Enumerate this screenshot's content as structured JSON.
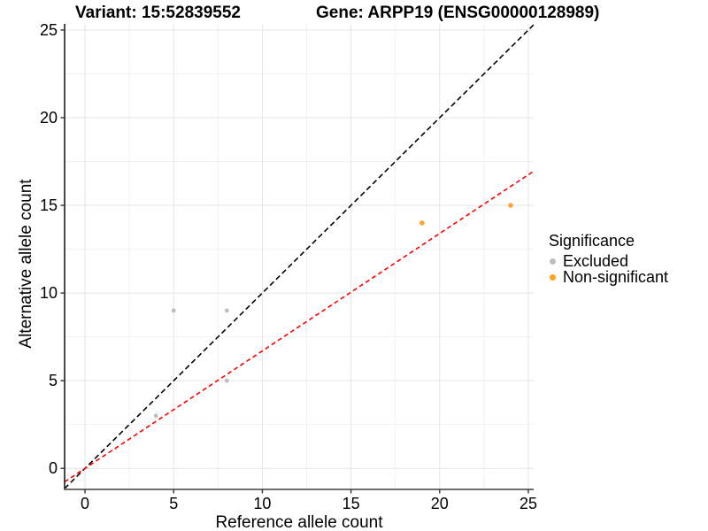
{
  "header": {
    "variant_title": "Variant: 15:52839552",
    "gene_title": "Gene: ARPP19 (ENSG00000128989)"
  },
  "chart_data": {
    "type": "scatter",
    "xlabel": "Reference allele count",
    "ylabel": "Alternative allele count",
    "xlim": [
      -1.15,
      25.3
    ],
    "ylim": [
      -1.2,
      25.35
    ],
    "x_ticks": [
      0,
      5,
      10,
      15,
      20,
      25
    ],
    "y_ticks": [
      0,
      5,
      10,
      15,
      20,
      25
    ],
    "x_minor_ticks": [
      2.5,
      7.5,
      12.5,
      17.5,
      22.5
    ],
    "y_minor_ticks": [
      2.5,
      7.5,
      12.5,
      17.5,
      22.5
    ],
    "grid": true,
    "series": [
      {
        "name": "Excluded",
        "color": "#BDBDBD",
        "point_radius": 2.4,
        "points": [
          [
            4,
            3
          ],
          [
            5,
            9
          ],
          [
            8,
            9
          ],
          [
            8,
            5
          ]
        ]
      },
      {
        "name": "Non-significant",
        "color": "#FCA33C",
        "point_radius": 2.8,
        "points": [
          [
            19,
            14
          ],
          [
            24,
            15
          ]
        ]
      }
    ],
    "lines": [
      {
        "name": "identity-line",
        "slope": 1,
        "intercept": 0,
        "color": "#000000",
        "style": "dashed",
        "dash": "6 3.6",
        "width": 1.6
      },
      {
        "name": "allelic-ratio-fit-line",
        "slope": 0.67,
        "intercept": 0,
        "color": "#FF0000",
        "style": "dashed",
        "dash": "5 3.5",
        "width": 1.6
      }
    ],
    "legend": {
      "title": "Significance",
      "position": "right",
      "entries": [
        {
          "label": "Excluded",
          "color": "#BDBDBD"
        },
        {
          "label": "Non-significant",
          "color": "#FFA313"
        }
      ]
    },
    "style": {
      "major_grid_color": "#E4E4E4",
      "minor_grid_color": "#F1F1F1",
      "y_axis_line_color": "#1A1A1A",
      "x_axis_line_color": "#6E6E6E",
      "tick_color": "#333333",
      "tick_label_color": "#000000"
    }
  }
}
